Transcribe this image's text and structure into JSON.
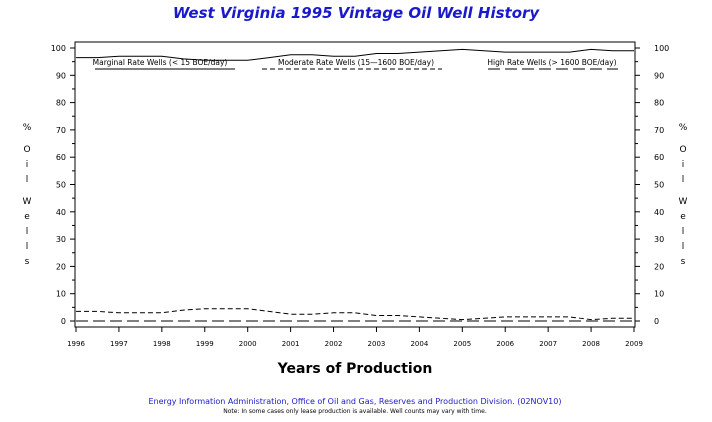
{
  "chart_data": {
    "type": "line",
    "title": "West Virginia 1995 Vintage Oil Well History",
    "xlabel": "Years of Production",
    "ylabel_left": "% Oil Wells",
    "ylabel_right": "% Oil Wells",
    "xlim": [
      1996,
      2009
    ],
    "ylim": [
      0,
      100
    ],
    "x_ticks": [
      "1996",
      "1997",
      "1998",
      "1999",
      "2000",
      "2001",
      "2002",
      "2003",
      "2004",
      "2005",
      "2006",
      "2007",
      "2008",
      "2009"
    ],
    "y_ticks": [
      "0",
      "10",
      "20",
      "30",
      "40",
      "50",
      "60",
      "70",
      "80",
      "90",
      "100"
    ],
    "grid": false,
    "legend_position": "top",
    "series": [
      {
        "name": "Marginal Rate Wells (<  15 BOE/day)",
        "style": "solid",
        "x": [
          1996,
          1996.5,
          1997,
          1997.5,
          1998,
          1998.5,
          1999,
          1999.5,
          2000,
          2000.5,
          2001,
          2001.5,
          2002,
          2002.5,
          2003,
          2003.5,
          2004,
          2004.5,
          2005,
          2005.5,
          2006,
          2006.5,
          2007,
          2007.5,
          2008,
          2008.5,
          2009
        ],
        "values": [
          96.5,
          96.5,
          97,
          97,
          97,
          96,
          95.5,
          95.5,
          95.5,
          96.5,
          97.5,
          97.5,
          97,
          97,
          98,
          98,
          98.5,
          99,
          99.5,
          99,
          98.5,
          98.5,
          98.5,
          98.5,
          99.5,
          99,
          99
        ]
      },
      {
        "name": "Moderate Rate Wells (15—1600 BOE/day)",
        "style": "dashed",
        "x": [
          1996,
          1996.5,
          1997,
          1997.5,
          1998,
          1998.5,
          1999,
          1999.5,
          2000,
          2000.5,
          2001,
          2001.5,
          2002,
          2002.5,
          2003,
          2003.5,
          2004,
          2004.5,
          2005,
          2005.5,
          2006,
          2006.5,
          2007,
          2007.5,
          2008,
          2008.5,
          2009
        ],
        "values": [
          3.5,
          3.5,
          3,
          3,
          3,
          4,
          4.5,
          4.5,
          4.5,
          3.5,
          2.5,
          2.5,
          3,
          3,
          2,
          2,
          1.5,
          1,
          0.5,
          1,
          1.5,
          1.5,
          1.5,
          1.5,
          0.5,
          1,
          1
        ]
      },
      {
        "name": "High Rate Wells (> 1600 BOE/day)",
        "style": "longdash",
        "x": [
          1996,
          2009
        ],
        "values": [
          0,
          0
        ]
      }
    ]
  },
  "footer": {
    "source": "Energy Information Administration, Office of Oil and Gas, Reserves and Production Division. (02NOV10)",
    "note": "Note: In some cases only lease production is available. Well counts may vary with time."
  },
  "colors": {
    "title": "#1a1acc",
    "footer": "#1a1acc",
    "axis": "#000000",
    "series": "#000000"
  }
}
